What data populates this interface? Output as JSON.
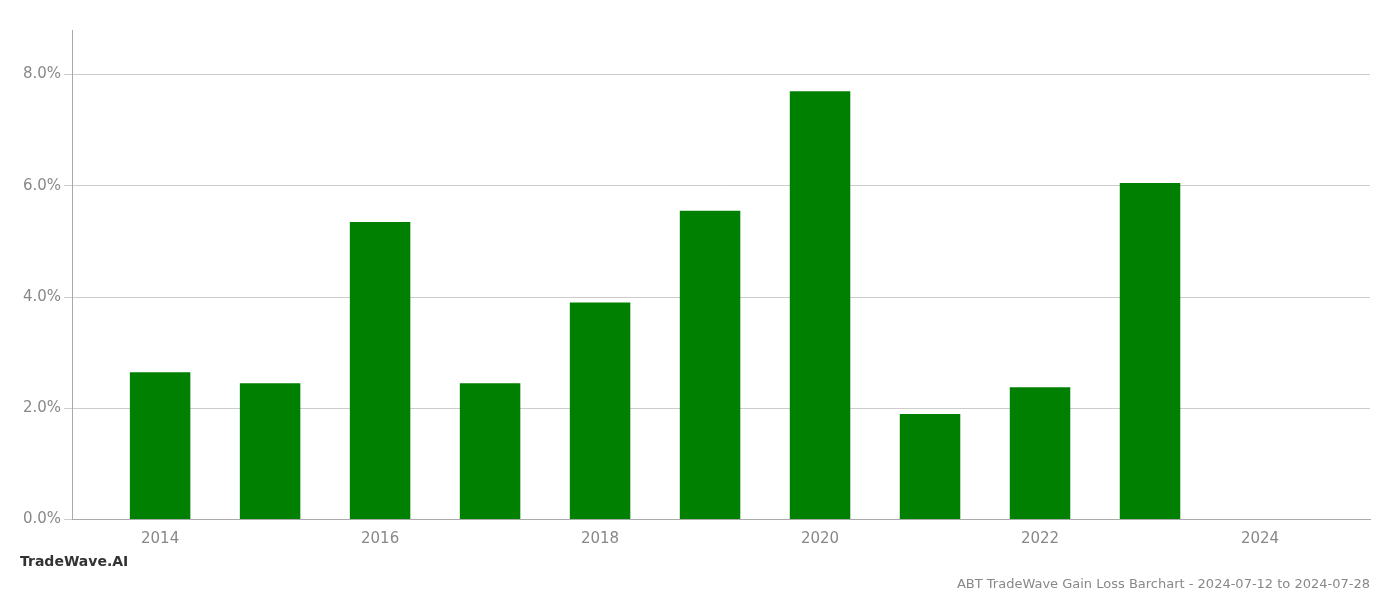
{
  "chart_data": {
    "type": "bar",
    "title": "ABT TradeWave Gain Loss Barchart - 2024-07-12 to 2024-07-28",
    "annotations": [
      "TradeWave.AI"
    ],
    "x": [
      2014,
      2015,
      2016,
      2017,
      2018,
      2019,
      2020,
      2021,
      2022,
      2023
    ],
    "values": [
      0.0265,
      0.0245,
      0.0535,
      0.0245,
      0.039,
      0.0555,
      0.077,
      0.019,
      0.0238,
      0.0605
    ],
    "color": "#008000",
    "xlim": [
      2013.2,
      2025.0
    ],
    "xticks": [
      2014,
      2016,
      2018,
      2020,
      2022,
      2024
    ],
    "ylim": [
      0,
      0.088
    ],
    "yticks": [
      {
        "value": 0.0,
        "label": "0.0%"
      },
      {
        "value": 0.02,
        "label": "2.0%"
      },
      {
        "value": 0.04,
        "label": "4.0%"
      },
      {
        "value": 0.06,
        "label": "6.0%"
      },
      {
        "value": 0.08,
        "label": "8.0%"
      }
    ],
    "grid": true
  }
}
